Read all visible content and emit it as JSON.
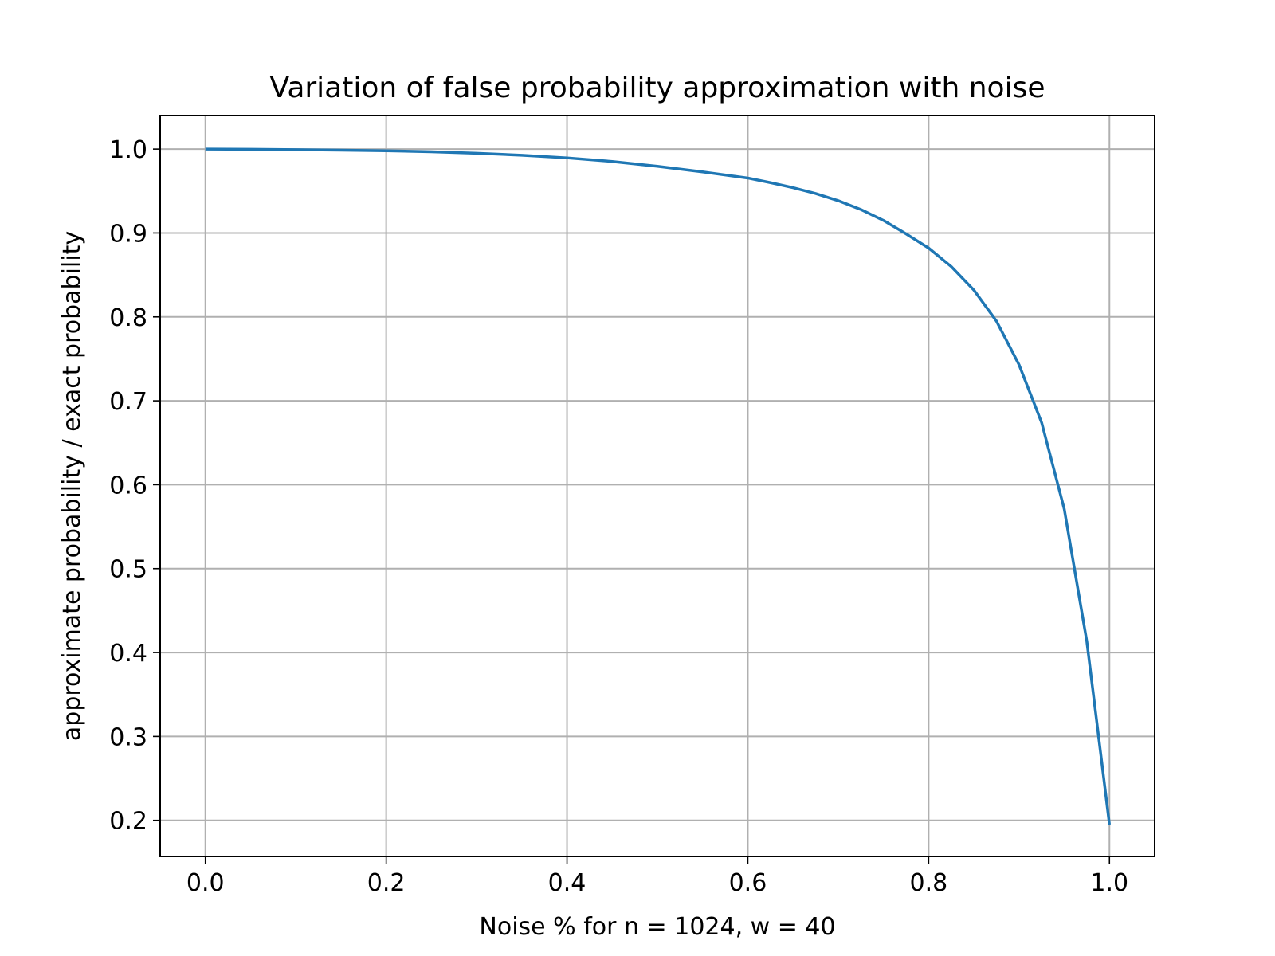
{
  "chart_data": {
    "type": "line",
    "title": "Variation of false probability approximation with noise",
    "xlabel": "Noise % for n = 1024, w = 40",
    "ylabel": "approximate probability / exact probability",
    "xlim": [
      -0.05,
      1.05
    ],
    "ylim": [
      0.157,
      1.04
    ],
    "xticks": [
      0.0,
      0.2,
      0.4,
      0.6,
      0.8,
      1.0
    ],
    "xtick_labels": [
      "0.0",
      "0.2",
      "0.4",
      "0.6",
      "0.8",
      "1.0"
    ],
    "yticks": [
      0.2,
      0.3,
      0.4,
      0.5,
      0.6,
      0.7,
      0.8,
      0.9,
      1.0
    ],
    "ytick_labels": [
      "0.2",
      "0.3",
      "0.4",
      "0.5",
      "0.6",
      "0.7",
      "0.8",
      "0.9",
      "1.0"
    ],
    "grid": true,
    "series": [
      {
        "color": "#1f77b4",
        "x": [
          0.0,
          0.05,
          0.1,
          0.15,
          0.2,
          0.25,
          0.3,
          0.35,
          0.4,
          0.45,
          0.5,
          0.55,
          0.6,
          0.625,
          0.65,
          0.675,
          0.7,
          0.725,
          0.75,
          0.775,
          0.8,
          0.825,
          0.85,
          0.875,
          0.9,
          0.925,
          0.95,
          0.975,
          1.0
        ],
        "y": [
          1.0,
          0.9998,
          0.9993,
          0.9987,
          0.998,
          0.9968,
          0.995,
          0.9927,
          0.9895,
          0.9852,
          0.9795,
          0.9728,
          0.9655,
          0.96,
          0.954,
          0.947,
          0.9385,
          0.928,
          0.915,
          0.899,
          0.882,
          0.86,
          0.832,
          0.795,
          0.743,
          0.674,
          0.571,
          0.413,
          0.195
        ]
      }
    ]
  }
}
